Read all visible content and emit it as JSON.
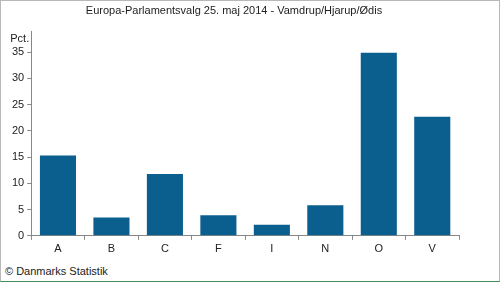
{
  "chart_data": {
    "type": "bar",
    "title": "Europa-Parlamentsvalg 25. maj 2014 - Vamdrup/Hjarup/Ødis",
    "ylabel": "Pct.",
    "source": "© Danmarks Statistik",
    "categories": [
      "A",
      "B",
      "C",
      "F",
      "I",
      "N",
      "O",
      "V"
    ],
    "values": [
      15.3,
      3.5,
      11.8,
      3.9,
      2.1,
      5.8,
      34.9,
      22.7
    ],
    "color": "#0a5f8e",
    "ylim": [
      0,
      39
    ],
    "yticks": [
      0,
      5,
      10,
      15,
      20,
      25,
      30,
      35
    ],
    "grid": false
  }
}
